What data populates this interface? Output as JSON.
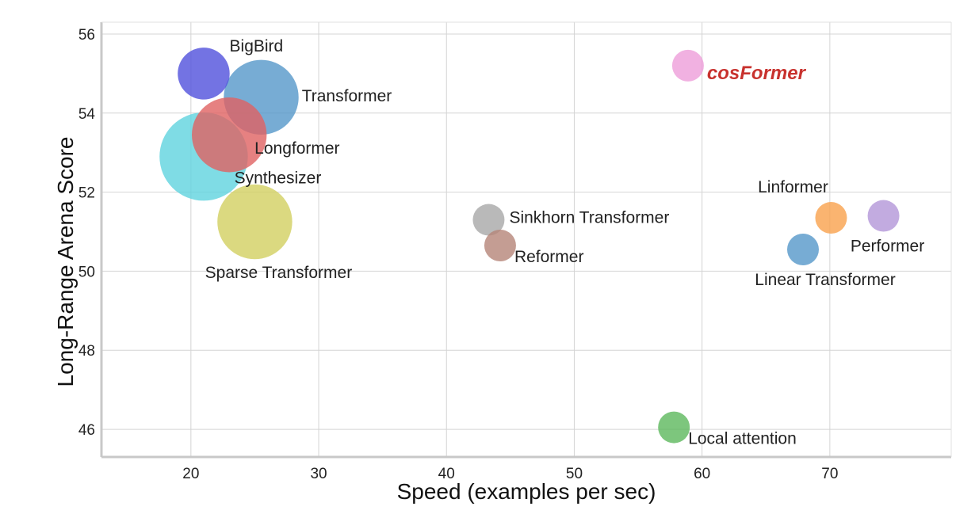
{
  "chart_data": {
    "type": "scatter",
    "title": "",
    "xlabel": "Speed (examples per sec)",
    "ylabel": "Long-Range Arena Score",
    "xlim": [
      13,
      79.5
    ],
    "ylim": [
      45.3,
      56.3
    ],
    "xticks": [
      20,
      30,
      40,
      50,
      60,
      70
    ],
    "yticks": [
      46,
      48,
      50,
      52,
      54,
      56
    ],
    "grid": true,
    "points": [
      {
        "name": "BigBird",
        "x": 21.0,
        "y": 55.0,
        "size": 0.55,
        "color": "#5050dc",
        "label_pos": "upper-right"
      },
      {
        "name": "Transformer",
        "x": 25.5,
        "y": 54.4,
        "size": 0.72,
        "color": "#5597c9",
        "label_pos": "right"
      },
      {
        "name": "Longformer",
        "x": 23.0,
        "y": 53.45,
        "size": 0.72,
        "color": "#e06262",
        "label_pos": "lower-right"
      },
      {
        "name": "Synthesizer",
        "x": 21.0,
        "y": 52.9,
        "size": 0.82,
        "color": "#5fd3de",
        "label_pos": "lower-right"
      },
      {
        "name": "Sparse Transformer",
        "x": 25.0,
        "y": 51.25,
        "size": 0.72,
        "color": "#d2d060",
        "label_pos": "below"
      },
      {
        "name": "Sinkhorn Transformer",
        "x": 43.3,
        "y": 51.3,
        "size": 0.4,
        "color": "#a8a8a8",
        "label_pos": "right"
      },
      {
        "name": "Reformer",
        "x": 44.2,
        "y": 50.65,
        "size": 0.4,
        "color": "#b58478",
        "label_pos": "lower-right"
      },
      {
        "name": "cosFormer",
        "x": 58.9,
        "y": 55.2,
        "size": 0.4,
        "color": "#ed9ed9",
        "label_pos": "lower-right",
        "highlight": true
      },
      {
        "name": "Linformer",
        "x": 70.1,
        "y": 51.35,
        "size": 0.4,
        "color": "#f9a14c",
        "label_pos": "above-left"
      },
      {
        "name": "Performer",
        "x": 74.2,
        "y": 51.4,
        "size": 0.4,
        "color": "#b396d8",
        "label_pos": "below"
      },
      {
        "name": "Linear Transformer",
        "x": 67.9,
        "y": 50.55,
        "size": 0.4,
        "color": "#5597c9",
        "label_pos": "below"
      },
      {
        "name": "Local attention",
        "x": 57.8,
        "y": 46.05,
        "size": 0.4,
        "color": "#5cb85c",
        "label_pos": "lower-right"
      }
    ]
  }
}
